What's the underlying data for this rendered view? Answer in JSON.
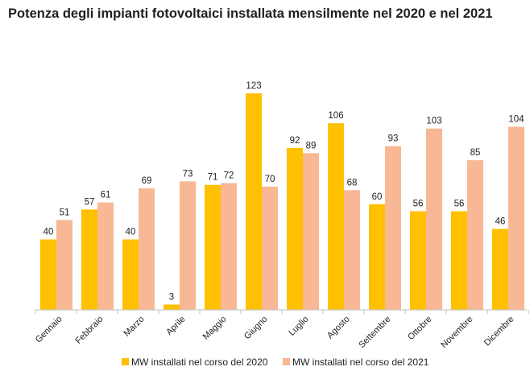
{
  "chart_data": {
    "type": "bar",
    "title": "Potenza degli impianti fotovoltaici installata mensilmente nel 2020 e nel 2021",
    "categories": [
      "Gennaio",
      "Febbraio",
      "Marzo",
      "Aprile",
      "Maggio",
      "Giugno",
      "Luglio",
      "Agosto",
      "Settembre",
      "Ottobre",
      "Novembre",
      "Dicembre"
    ],
    "series": [
      {
        "name": "MW installati nel corso del 2020",
        "color": "#FFC000",
        "values": [
          40,
          57,
          40,
          3,
          71,
          123,
          92,
          106,
          60,
          56,
          56,
          46
        ]
      },
      {
        "name": "MW installati nel corso del 2021",
        "color": "#F8B895",
        "values": [
          51,
          61,
          69,
          73,
          72,
          70,
          89,
          68,
          93,
          103,
          85,
          104
        ]
      }
    ],
    "xlabel": "",
    "ylabel": "",
    "ylim": [
      0,
      123
    ],
    "grid": false,
    "legend": "bottom"
  }
}
